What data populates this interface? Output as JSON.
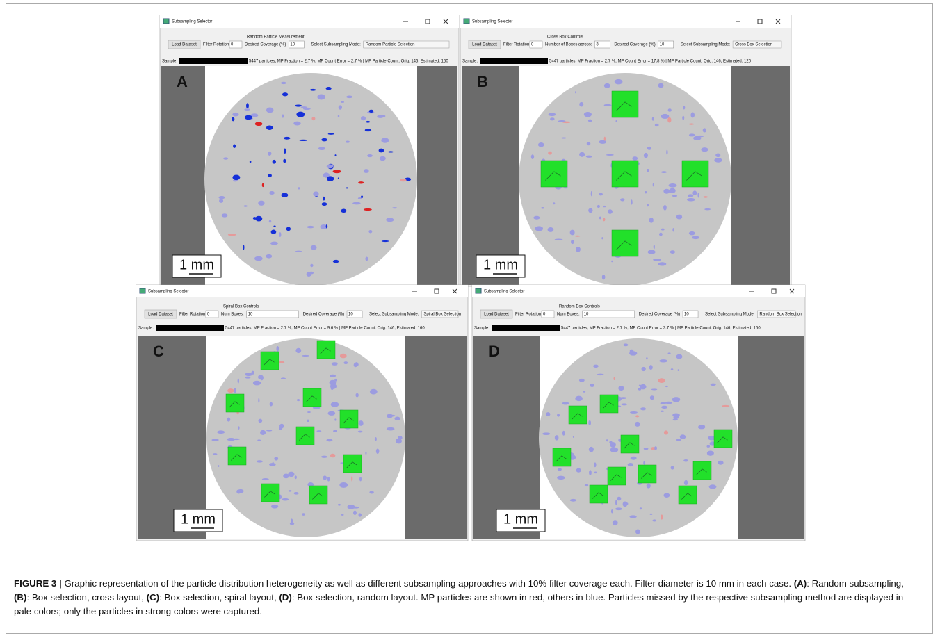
{
  "windows": [
    {
      "title": "Subsampling Selector",
      "load_button": "Load Dataset",
      "rotation_label": "Filter Rotation",
      "rotation_value": "0",
      "group_title": "Random Particle Measurement",
      "fields": [
        {
          "label": "Desired Coverage (%)",
          "value": "10"
        }
      ],
      "mode_label": "Select Subsampling Mode:",
      "mode_value": "Random Particle Selection",
      "sample_label": "Sample:",
      "info": "5447 particles, MP Fraction = 2.7 %, MP Count Error = 2.7 % | MP Particle Count: Orig: 146, Estimated: 150",
      "panel_label": "A",
      "scale_bar": "1 mm"
    },
    {
      "title": "Subsampling Selector",
      "load_button": "Load Dataset",
      "rotation_label": "Filter Rotation",
      "rotation_value": "0",
      "group_title": "Cross Box Controls",
      "fields": [
        {
          "label": "Number of Boxes across:",
          "value": "3"
        },
        {
          "label": "Desired Coverage (%)",
          "value": "10"
        }
      ],
      "mode_label": "Select Subsampling Mode:",
      "mode_value": "Cross Box Selection",
      "sample_label": "Sample:",
      "info": "5447 particles, MP Fraction = 2.7 %, MP Count Error = 17.8 % | MP Particle Count: Orig: 146, Estimated: 120",
      "panel_label": "B",
      "scale_bar": "1 mm"
    },
    {
      "title": "Subsampling Selector",
      "load_button": "Load Dataset",
      "rotation_label": "Filter Rotation",
      "rotation_value": "0",
      "group_title": "Spiral Box Controls",
      "fields": [
        {
          "label": "Num Boxes:",
          "value": "10"
        },
        {
          "label": "Desired Coverage (%)",
          "value": "10"
        }
      ],
      "mode_label": "Select Subsampling Mode:",
      "mode_value": "Spiral Box Selection",
      "sample_label": "Sample:",
      "info": "5447 particles, MP Fraction = 2.7 %, MP Count Error = 9.6 % | MP Particle Count: Orig: 146, Estimated: 160",
      "panel_label": "C",
      "scale_bar": "1 mm"
    },
    {
      "title": "Subsampling Selector",
      "load_button": "Load Dataset",
      "rotation_label": "Filter Rotation",
      "rotation_value": "0",
      "group_title": "Random Box Controls",
      "fields": [
        {
          "label": "Num Boxes:",
          "value": "10"
        },
        {
          "label": "Desired Coverage (%)",
          "value": "10"
        }
      ],
      "mode_label": "Select Subsampling Mode:",
      "mode_value": "Random Box Selection",
      "sample_label": "Sample:",
      "info": "5447 particles, MP Fraction = 2.7 %, MP Count Error = 2.7 % | MP Particle Count: Orig: 146, Estimated: 150",
      "panel_label": "D",
      "scale_bar": "1 mm"
    }
  ],
  "caption": [
    {
      "text": "FIGURE 3 |",
      "bold": true
    },
    {
      "text": " Graphic representation of the particle distribution heterogeneity as well as different subsampling approaches with 10% filter coverage each. Filter diameter is 10 mm in each case. ",
      "bold": false
    },
    {
      "text": "(A)",
      "bold": true
    },
    {
      "text": ": Random subsampling, ",
      "bold": false
    },
    {
      "text": "(B)",
      "bold": true
    },
    {
      "text": ": Box selection, cross layout, ",
      "bold": false
    },
    {
      "text": "(C)",
      "bold": true
    },
    {
      "text": ": Box selection, spiral layout, ",
      "bold": false
    },
    {
      "text": "(D)",
      "bold": true
    },
    {
      "text": ": Box selection, random layout. MP particles are shown in red, others in blue. Particles missed by the respective subsampling method are displayed in pale colors; only the particles in strong colors were captured.",
      "bold": false
    }
  ]
}
